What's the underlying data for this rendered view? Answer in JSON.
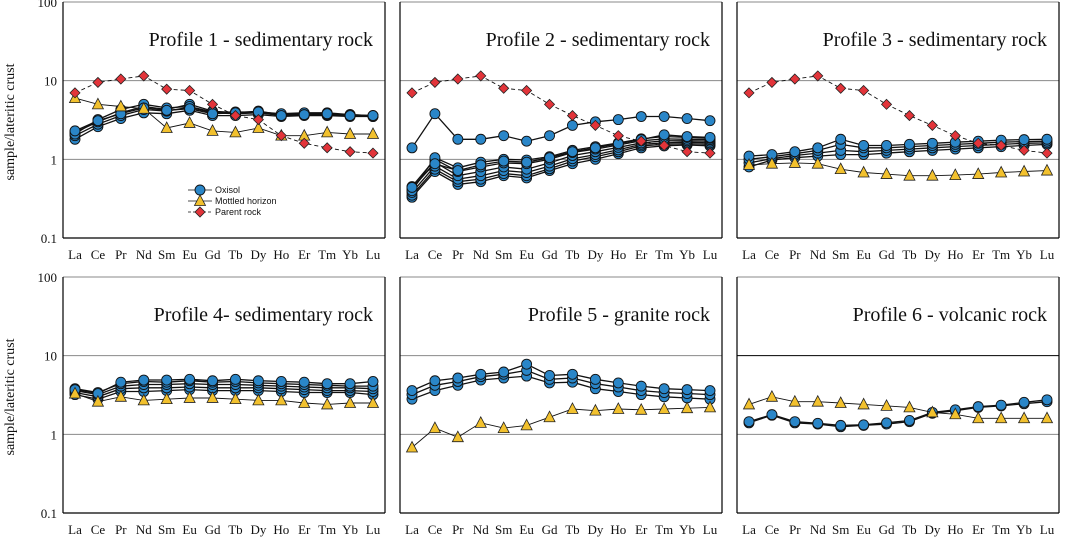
{
  "figure": {
    "y_axis_label": "sample/lateritic crust",
    "legend": [
      {
        "label": "Oxisol",
        "marker": "circle",
        "color": "#2a86c8"
      },
      {
        "label": "Mottled horizon",
        "marker": "triangle",
        "color": "#f2c12e"
      },
      {
        "label": "Parent rock",
        "marker": "diamond",
        "color": "#e2343a"
      }
    ]
  },
  "chart_data": [
    {
      "type": "line",
      "title": "Profile 1 - sedimentary rock",
      "x": [
        "La",
        "Ce",
        "Pr",
        "Nd",
        "Sm",
        "Eu",
        "Gd",
        "Tb",
        "Dy",
        "Ho",
        "Er",
        "Tm",
        "Yb",
        "Lu"
      ],
      "ylabel": "sample/lateritic crust",
      "yscale": "log",
      "ylim": [
        0.1,
        100
      ],
      "yticks": [
        "0.1",
        "1",
        "10",
        "100"
      ],
      "series": [
        {
          "name": "Oxisol",
          "values": [
            1.8,
            2.6,
            3.3,
            3.9,
            3.8,
            4.2,
            3.6,
            3.6,
            3.7,
            3.5,
            3.6,
            3.6,
            3.5,
            3.5
          ]
        },
        {
          "name": "Oxisol",
          "values": [
            2.0,
            2.8,
            3.6,
            4.3,
            4.1,
            4.6,
            3.9,
            3.8,
            3.9,
            3.6,
            3.7,
            3.7,
            3.6,
            3.5
          ]
        },
        {
          "name": "Oxisol",
          "values": [
            2.2,
            3.0,
            3.9,
            4.7,
            4.3,
            5.0,
            4.1,
            3.9,
            4.1,
            3.7,
            3.8,
            3.8,
            3.7,
            3.6
          ]
        },
        {
          "name": "Oxisol",
          "values": [
            2.1,
            3.2,
            4.3,
            5.0,
            4.5,
            4.7,
            4.0,
            4.0,
            4.0,
            3.8,
            3.9,
            3.9,
            3.7,
            3.6
          ]
        },
        {
          "name": "Oxisol",
          "values": [
            2.3,
            3.1,
            3.8,
            4.5,
            4.2,
            4.4,
            3.8,
            3.9,
            4.0,
            3.6,
            3.7,
            3.8,
            3.6,
            3.6
          ]
        },
        {
          "name": "Mottled horizon",
          "values": [
            6.0,
            5.0,
            4.7,
            4.4,
            2.5,
            2.9,
            2.3,
            2.2,
            2.5,
            2.0,
            2.0,
            2.2,
            2.1,
            2.1
          ]
        },
        {
          "name": "Parent rock",
          "values": [
            7.0,
            9.5,
            10.5,
            11.5,
            7.8,
            7.5,
            5.0,
            3.6,
            3.2,
            2.0,
            1.6,
            1.4,
            1.25,
            1.2
          ]
        }
      ]
    },
    {
      "type": "line",
      "title": "Profile 2 - sedimentary rock",
      "x": [
        "La",
        "Ce",
        "Pr",
        "Nd",
        "Sm",
        "Eu",
        "Gd",
        "Tb",
        "Dy",
        "Ho",
        "Er",
        "Tm",
        "Yb",
        "Lu"
      ],
      "ylabel": "sample/lateritic crust",
      "yscale": "log",
      "ylim": [
        0.1,
        100
      ],
      "yticks": [
        "0.1",
        "1",
        "10",
        "100"
      ],
      "series": [
        {
          "name": "Oxisol",
          "values": [
            1.4,
            3.8,
            1.8,
            1.8,
            2.0,
            1.7,
            2.0,
            2.7,
            3.0,
            3.2,
            3.5,
            3.5,
            3.3,
            3.1
          ]
        },
        {
          "name": "Oxisol",
          "values": [
            0.33,
            0.7,
            0.48,
            0.52,
            0.62,
            0.58,
            0.72,
            0.88,
            1.0,
            1.18,
            1.4,
            1.48,
            1.52,
            1.48
          ]
        },
        {
          "name": "Oxisol",
          "values": [
            0.35,
            0.75,
            0.52,
            0.56,
            0.66,
            0.62,
            0.76,
            0.95,
            1.08,
            1.25,
            1.48,
            1.55,
            1.58,
            1.55
          ]
        },
        {
          "name": "Oxisol",
          "values": [
            0.38,
            0.82,
            0.56,
            0.62,
            0.72,
            0.68,
            0.82,
            1.02,
            1.15,
            1.32,
            1.55,
            1.62,
            1.65,
            1.62
          ]
        },
        {
          "name": "Oxisol",
          "values": [
            0.42,
            0.92,
            0.62,
            0.7,
            0.8,
            0.75,
            0.9,
            1.12,
            1.25,
            1.42,
            1.62,
            1.72,
            1.72,
            1.7
          ]
        },
        {
          "name": "Oxisol",
          "values": [
            0.45,
            1.0,
            0.7,
            0.8,
            0.9,
            0.88,
            1.0,
            1.22,
            1.35,
            1.52,
            1.72,
            1.82,
            1.8,
            1.78
          ]
        },
        {
          "name": "Oxisol",
          "values": [
            0.4,
            1.05,
            0.78,
            0.92,
            1.0,
            0.98,
            1.08,
            1.3,
            1.45,
            1.62,
            1.82,
            1.95,
            1.9,
            1.85
          ]
        },
        {
          "name": "Oxisol",
          "values": [
            0.44,
            0.88,
            0.72,
            0.85,
            0.95,
            0.92,
            1.05,
            1.25,
            1.4,
            1.58,
            1.78,
            2.05,
            1.95,
            1.9
          ]
        },
        {
          "name": "Parent rock",
          "values": [
            7.0,
            9.5,
            10.5,
            11.5,
            8.0,
            7.5,
            5.0,
            3.6,
            2.7,
            2.0,
            1.7,
            1.5,
            1.25,
            1.2
          ]
        }
      ]
    },
    {
      "type": "line",
      "title": "Profile 3 - sedimentary rock",
      "x": [
        "La",
        "Ce",
        "Pr",
        "Nd",
        "Sm",
        "Eu",
        "Gd",
        "Tb",
        "Dy",
        "Ho",
        "Er",
        "Tm",
        "Yb",
        "Lu"
      ],
      "ylabel": "sample/lateritic crust",
      "yscale": "log",
      "ylim": [
        0.1,
        100
      ],
      "yticks": [
        "0.1",
        "1",
        "10",
        "100"
      ],
      "series": [
        {
          "name": "Oxisol",
          "values": [
            0.8,
            0.98,
            1.05,
            1.1,
            1.15,
            1.15,
            1.2,
            1.25,
            1.3,
            1.35,
            1.4,
            1.45,
            1.5,
            1.55
          ]
        },
        {
          "name": "Oxisol",
          "values": [
            0.9,
            1.02,
            1.12,
            1.2,
            1.3,
            1.25,
            1.3,
            1.35,
            1.4,
            1.45,
            1.5,
            1.55,
            1.6,
            1.62
          ]
        },
        {
          "name": "Oxisol",
          "values": [
            1.0,
            1.08,
            1.18,
            1.3,
            1.55,
            1.4,
            1.4,
            1.45,
            1.5,
            1.55,
            1.6,
            1.65,
            1.68,
            1.7
          ]
        },
        {
          "name": "Oxisol",
          "values": [
            1.1,
            1.15,
            1.25,
            1.4,
            1.8,
            1.5,
            1.5,
            1.55,
            1.6,
            1.65,
            1.7,
            1.75,
            1.78,
            1.8
          ]
        },
        {
          "name": "Mottled horizon",
          "values": [
            0.85,
            0.88,
            0.9,
            0.88,
            0.75,
            0.68,
            0.65,
            0.62,
            0.62,
            0.63,
            0.65,
            0.68,
            0.7,
            0.72
          ]
        },
        {
          "name": "Parent rock",
          "values": [
            7.0,
            9.5,
            10.5,
            11.5,
            8.0,
            7.5,
            5.0,
            3.6,
            2.7,
            2.0,
            1.6,
            1.5,
            1.3,
            1.2
          ]
        }
      ]
    },
    {
      "type": "line",
      "title": "Profile 4- sedimentary rock",
      "x": [
        "La",
        "Ce",
        "Pr",
        "Nd",
        "Sm",
        "Eu",
        "Gd",
        "Tb",
        "Dy",
        "Ho",
        "Er",
        "Tm",
        "Yb",
        "Lu"
      ],
      "ylabel": "sample/lateritic crust",
      "yscale": "log",
      "ylim": [
        0.1,
        100
      ],
      "yticks": [
        "0.1",
        "1",
        "10",
        "100"
      ],
      "series": [
        {
          "name": "Oxisol",
          "values": [
            3.2,
            2.8,
            3.5,
            3.5,
            3.6,
            3.7,
            3.6,
            3.6,
            3.6,
            3.5,
            3.4,
            3.4,
            3.4,
            3.2
          ]
        },
        {
          "name": "Oxisol",
          "values": [
            3.4,
            3.0,
            3.8,
            3.9,
            3.9,
            4.0,
            3.9,
            3.9,
            3.9,
            3.8,
            3.7,
            3.6,
            3.6,
            3.5
          ]
        },
        {
          "name": "Oxisol",
          "values": [
            3.6,
            3.2,
            4.1,
            4.3,
            4.3,
            4.4,
            4.3,
            4.3,
            4.2,
            4.1,
            4.0,
            3.9,
            3.9,
            3.8
          ]
        },
        {
          "name": "Oxisol",
          "values": [
            3.8,
            3.4,
            4.4,
            4.7,
            4.6,
            4.8,
            4.6,
            4.7,
            4.5,
            4.4,
            4.3,
            4.2,
            4.1,
            4.1
          ]
        },
        {
          "name": "Oxisol",
          "values": [
            3.7,
            3.3,
            4.6,
            4.9,
            4.9,
            5.0,
            4.8,
            5.0,
            4.8,
            4.7,
            4.6,
            4.4,
            4.4,
            4.7
          ]
        },
        {
          "name": "Mottled horizon",
          "values": [
            3.3,
            2.6,
            3.0,
            2.7,
            2.8,
            2.9,
            2.9,
            2.8,
            2.7,
            2.7,
            2.5,
            2.4,
            2.5,
            2.5
          ]
        }
      ]
    },
    {
      "type": "line",
      "title": "Profile 5 - granite rock",
      "x": [
        "La",
        "Ce",
        "Pr",
        "Nd",
        "Sm",
        "Eu",
        "Gd",
        "Tb",
        "Dy",
        "Ho",
        "Er",
        "Tm",
        "Yb",
        "Lu"
      ],
      "ylabel": "sample/lateritic crust",
      "yscale": "log",
      "ylim": [
        0.1,
        100
      ],
      "yticks": [
        "0.1",
        "1",
        "10",
        "100"
      ],
      "series": [
        {
          "name": "Oxisol",
          "values": [
            2.8,
            3.6,
            4.2,
            4.9,
            5.2,
            5.5,
            4.5,
            4.6,
            3.8,
            3.5,
            3.2,
            3.0,
            2.9,
            2.8
          ]
        },
        {
          "name": "Oxisol",
          "values": [
            3.2,
            4.2,
            4.7,
            5.4,
            5.8,
            6.5,
            5.0,
            5.2,
            4.4,
            4.0,
            3.6,
            3.4,
            3.3,
            3.2
          ]
        },
        {
          "name": "Oxisol",
          "values": [
            3.6,
            4.8,
            5.2,
            5.8,
            6.2,
            7.8,
            5.6,
            5.8,
            5.0,
            4.5,
            4.1,
            3.8,
            3.7,
            3.6
          ]
        },
        {
          "name": "Mottled horizon",
          "values": [
            0.68,
            1.2,
            0.92,
            1.4,
            1.2,
            1.3,
            1.65,
            2.1,
            2.0,
            2.1,
            2.05,
            2.1,
            2.15,
            2.2
          ]
        }
      ]
    },
    {
      "type": "line",
      "title": "Profile 6 - volcanic rock",
      "x": [
        "La",
        "Ce",
        "Pr",
        "Nd",
        "Sm",
        "Eu",
        "Gd",
        "Tb",
        "Dy",
        "Ho",
        "Er",
        "Tm",
        "Yb",
        "Lu"
      ],
      "ylabel": "sample/lateritic crust",
      "yscale": "log",
      "ylim": [
        0.1,
        100
      ],
      "yticks": [
        "0.1",
        "1",
        "10",
        "100"
      ],
      "series": [
        {
          "name": "Oxisol",
          "values": [
            1.4,
            1.75,
            1.4,
            1.35,
            1.25,
            1.3,
            1.35,
            1.45,
            1.85,
            2.0,
            2.2,
            2.3,
            2.45,
            2.6
          ]
        },
        {
          "name": "Oxisol",
          "values": [
            1.45,
            1.78,
            1.45,
            1.38,
            1.3,
            1.32,
            1.4,
            1.5,
            1.9,
            2.05,
            2.25,
            2.35,
            2.55,
            2.75
          ]
        },
        {
          "name": "Mottled horizon",
          "values": [
            2.4,
            3.0,
            2.6,
            2.6,
            2.5,
            2.4,
            2.3,
            2.2,
            1.9,
            1.8,
            1.6,
            1.6,
            1.6,
            1.6
          ]
        }
      ]
    }
  ]
}
